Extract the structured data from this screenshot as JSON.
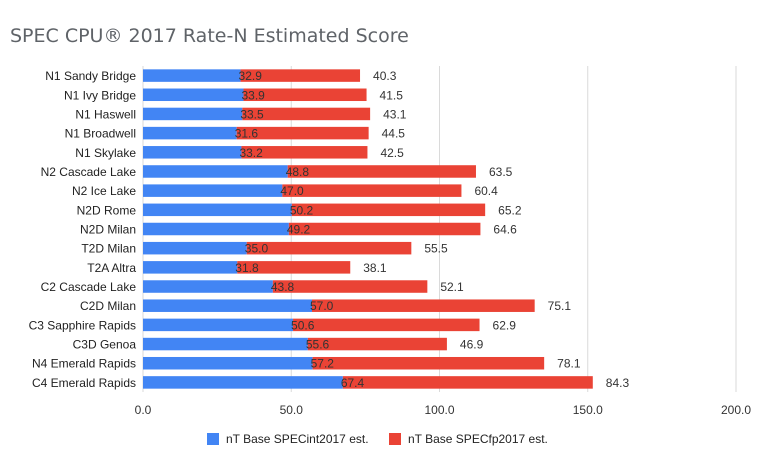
{
  "chart_data": {
    "type": "bar",
    "orientation": "horizontal",
    "stacked": true,
    "title": "SPEC CPU® 2017 Rate-N Estimated Score",
    "xlabel": "",
    "ylabel": "",
    "xlim": [
      0,
      200
    ],
    "x_ticks": [
      "0.0",
      "50.0",
      "100.0",
      "150.0",
      "200.0"
    ],
    "grid": true,
    "legend_position": "bottom",
    "categories": [
      "N1 Sandy Bridge",
      "N1 Ivy Bridge",
      "N1 Haswell",
      "N1 Broadwell",
      "N1 Skylake",
      "N2 Cascade Lake",
      "N2 Ice Lake",
      "N2D Rome",
      "N2D Milan",
      "T2D Milan",
      "T2A Altra",
      "C2 Cascade Lake",
      "C2D Milan",
      "C3 Sapphire Rapids",
      "C3D Genoa",
      "N4 Emerald Rapids",
      "C4 Emerald Rapids"
    ],
    "series": [
      {
        "name": "nT Base SPECint2017 est.",
        "color": "#4285f4",
        "values": [
          32.9,
          33.9,
          33.5,
          31.6,
          33.2,
          48.8,
          47.0,
          50.2,
          49.2,
          35.0,
          31.8,
          43.8,
          57.0,
          50.6,
          55.6,
          57.2,
          67.4
        ],
        "labels": [
          "32.9",
          "33.9",
          "33.5",
          "31.6",
          "33.2",
          "48.8",
          "47.0",
          "50.2",
          "49.2",
          "35.0",
          "31.8",
          "43.8",
          "57.0",
          "50.6",
          "55.6",
          "57.2",
          "67.4"
        ]
      },
      {
        "name": "nT Base SPECfp2017 est.",
        "color": "#ea4335",
        "values": [
          40.3,
          41.5,
          43.1,
          44.5,
          42.5,
          63.5,
          60.4,
          65.2,
          64.6,
          55.5,
          38.1,
          52.1,
          75.1,
          62.9,
          46.9,
          78.1,
          84.3
        ],
        "labels": [
          "40.3",
          "41.5",
          "43.1",
          "44.5",
          "42.5",
          "63.5",
          "60.4",
          "65.2",
          "64.6",
          "55.5",
          "38.1",
          "52.1",
          "75.1",
          "62.9",
          "46.9",
          "78.1",
          "84.3"
        ]
      }
    ]
  }
}
